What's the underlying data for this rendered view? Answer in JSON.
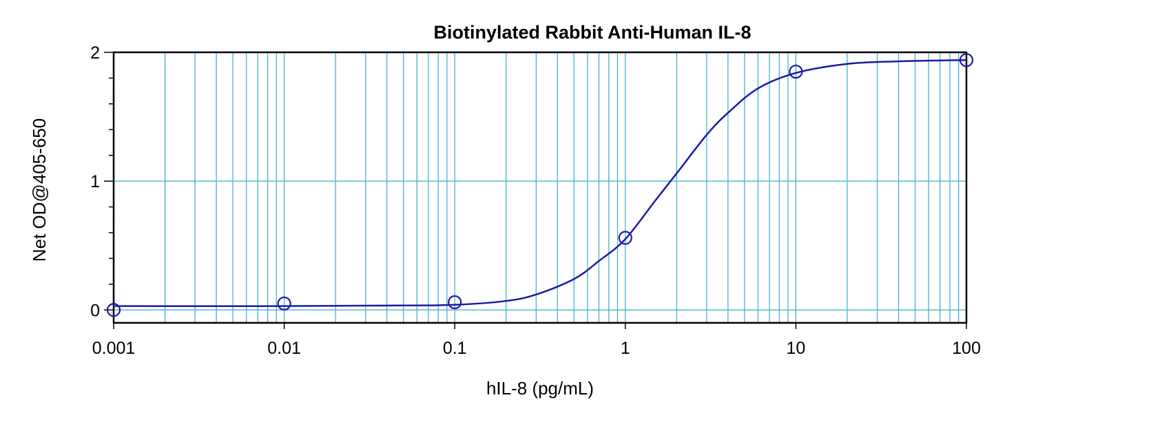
{
  "chart_data": {
    "type": "scatter",
    "title": "Biotinylated Rabbit Anti-Human IL-8",
    "xlabel": "hIL-8 (pg/mL)",
    "ylabel": "Net OD@405-650",
    "x_scale": "log",
    "xlim": [
      0.001,
      100
    ],
    "ylim": [
      -0.1,
      2.0
    ],
    "x_tick_labels": [
      "0.001",
      "0.01",
      "0.1",
      "1",
      "10",
      "100"
    ],
    "x_tick_values": [
      0.001,
      0.01,
      0.1,
      1,
      10,
      100
    ],
    "y_tick_labels": [
      "0",
      "1",
      "2"
    ],
    "y_tick_values": [
      0,
      1,
      2
    ],
    "y_minor_step": 0.2,
    "grid": true,
    "series": [
      {
        "points": {
          "x": [
            0.001,
            0.01,
            0.1,
            1,
            10,
            100
          ],
          "y": [
            0.0,
            0.05,
            0.06,
            0.56,
            1.85,
            1.94
          ]
        },
        "fit_curve": {
          "x": [
            0.001,
            0.01,
            0.05,
            0.1,
            0.2,
            0.3,
            0.5,
            0.7,
            1,
            1.5,
            2,
            3,
            4,
            6,
            10,
            20,
            40,
            100
          ],
          "y": [
            0.03,
            0.03,
            0.035,
            0.04,
            0.07,
            0.12,
            0.24,
            0.38,
            0.55,
            0.85,
            1.06,
            1.36,
            1.53,
            1.72,
            1.84,
            1.91,
            1.93,
            1.94
          ]
        }
      }
    ],
    "colors": {
      "series": "#1a1aa8",
      "grid": "#3fa9c8",
      "axis": "#000000"
    }
  }
}
